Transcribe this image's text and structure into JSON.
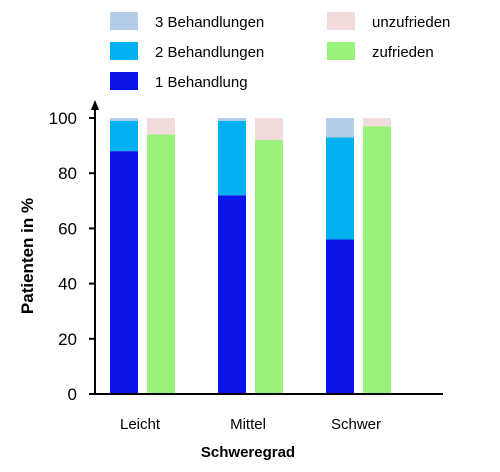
{
  "chart_data": {
    "type": "bar",
    "xlabel": "Schweregrad",
    "ylabel": "Patienten in %",
    "ylim": [
      0,
      100
    ],
    "yticks": [
      0,
      20,
      40,
      60,
      80,
      100
    ],
    "categories": [
      "Leicht",
      "Mittel",
      "Schwer"
    ],
    "grid": false,
    "legend_position": "top",
    "groups": [
      {
        "name": "treatments",
        "stacked": true,
        "series": [
          {
            "name": "1 Behandlung",
            "color": "#0a14e6",
            "values": [
              88,
              72,
              56
            ]
          },
          {
            "name": "2 Behandlungen",
            "color": "#00b0f0",
            "values": [
              11,
              27,
              37
            ]
          },
          {
            "name": "3 Behandlungen",
            "color": "#b4cce8",
            "values": [
              1,
              1,
              7
            ]
          }
        ]
      },
      {
        "name": "satisfaction",
        "stacked": true,
        "series": [
          {
            "name": "zufrieden",
            "color": "#99f27a",
            "values": [
              94,
              92,
              97
            ]
          },
          {
            "name": "unzufrieden",
            "color": "#f2dcdb",
            "values": [
              6,
              8,
              3
            ]
          }
        ]
      }
    ],
    "legend": [
      {
        "label": "3 Behandlungen",
        "color": "#b4cce8"
      },
      {
        "label": "2 Behandlungen",
        "color": "#00b0f0"
      },
      {
        "label": "1 Behandlung",
        "color": "#0a14e6"
      },
      {
        "label": "unzufrieden",
        "color": "#f2dcdb"
      },
      {
        "label": "zufrieden",
        "color": "#99f27a"
      }
    ]
  }
}
